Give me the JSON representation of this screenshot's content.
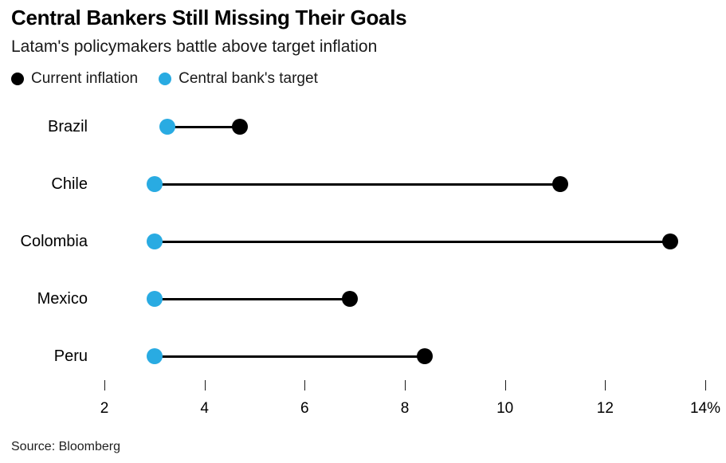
{
  "header": {
    "title": "Central Bankers Still Missing Their Goals",
    "subtitle": "Latam's policymakers battle above target inflation"
  },
  "legend": {
    "items": [
      {
        "label": "Current inflation",
        "color": "#000000"
      },
      {
        "label": "Central bank's target",
        "color": "#29ABE2"
      }
    ]
  },
  "source": "Source: Bloomberg",
  "colors": {
    "current_inflation": "#000000",
    "target": "#29ABE2",
    "connector": "#000000"
  },
  "chart_data": {
    "type": "dumbbell",
    "title": "Central Bankers Still Missing Their Goals",
    "subtitle": "Latam's policymakers battle above target inflation",
    "categories": [
      "Brazil",
      "Chile",
      "Colombia",
      "Mexico",
      "Peru"
    ],
    "series": [
      {
        "name": "Current inflation",
        "color": "#000000",
        "values": [
          4.7,
          11.1,
          13.3,
          6.9,
          8.4
        ]
      },
      {
        "name": "Central bank's target",
        "color": "#29ABE2",
        "values": [
          3.25,
          3.0,
          3.0,
          3.0,
          3.0
        ]
      }
    ],
    "xlabel": "",
    "ylabel": "",
    "xlim": [
      2,
      14
    ],
    "x_ticks": {
      "values": [
        2,
        4,
        6,
        8,
        10,
        12,
        14
      ],
      "labels": [
        "2",
        "4",
        "6",
        "8",
        "10",
        "12",
        "14%"
      ]
    },
    "unit": "%",
    "grid": false,
    "legend_position": "top-left",
    "orientation": "horizontal"
  }
}
